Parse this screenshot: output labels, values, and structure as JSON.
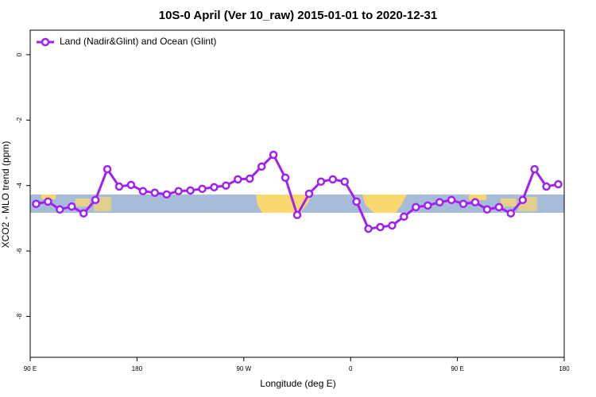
{
  "chart_data": {
    "type": "line",
    "title": "10S-0 April (Ver 10_raw)   2015-01-01 to 2020-12-31",
    "x_label": "Longitude (deg E)",
    "y_label": "XCO2 - MLO trend (ppm)",
    "x": [
      95,
      105,
      115,
      125,
      135,
      145,
      155,
      165,
      175,
      185,
      195,
      205,
      215,
      225,
      235,
      245,
      255,
      265,
      275,
      285,
      295,
      305,
      315,
      325,
      335,
      345,
      355,
      365,
      375,
      385,
      395,
      405,
      415,
      425,
      435,
      445,
      455,
      465,
      475,
      485,
      495,
      505,
      515,
      525,
      535
    ],
    "series": [
      {
        "name": "Land (Nadir&Glint) and Ocean (Glint)",
        "color": "#a020f0",
        "values": [
          -4.56,
          -4.49,
          -4.73,
          -4.64,
          -4.85,
          -4.44,
          -3.5,
          -4.03,
          -3.98,
          -4.17,
          -4.22,
          -4.27,
          -4.17,
          -4.15,
          -4.1,
          -4.05,
          -4.0,
          -3.81,
          -3.79,
          -3.42,
          -3.06,
          -3.76,
          -4.9,
          -4.25,
          -3.88,
          -3.81,
          -3.88,
          -4.49,
          -5.32,
          -5.27,
          -5.22,
          -4.95,
          -4.66,
          -4.61,
          -4.51,
          -4.44,
          -4.56,
          -4.51,
          -4.73,
          -4.66,
          -4.85,
          -4.44,
          -3.5,
          -4.03,
          -3.96
        ]
      }
    ],
    "xlim": [
      90,
      540
    ],
    "xticks": [
      {
        "value": 90,
        "label": "90 E"
      },
      180,
      {
        "value": 270,
        "label": "90 W"
      },
      {
        "value": 360,
        "label": "0"
      },
      {
        "value": 450,
        "label": "90 E"
      },
      {
        "value": 540,
        "label": "180"
      }
    ],
    "ylim": [
      -9.25,
      0.75
    ],
    "yticks": [
      0,
      -2,
      -4,
      -6,
      -8
    ],
    "legend": "top-left"
  }
}
